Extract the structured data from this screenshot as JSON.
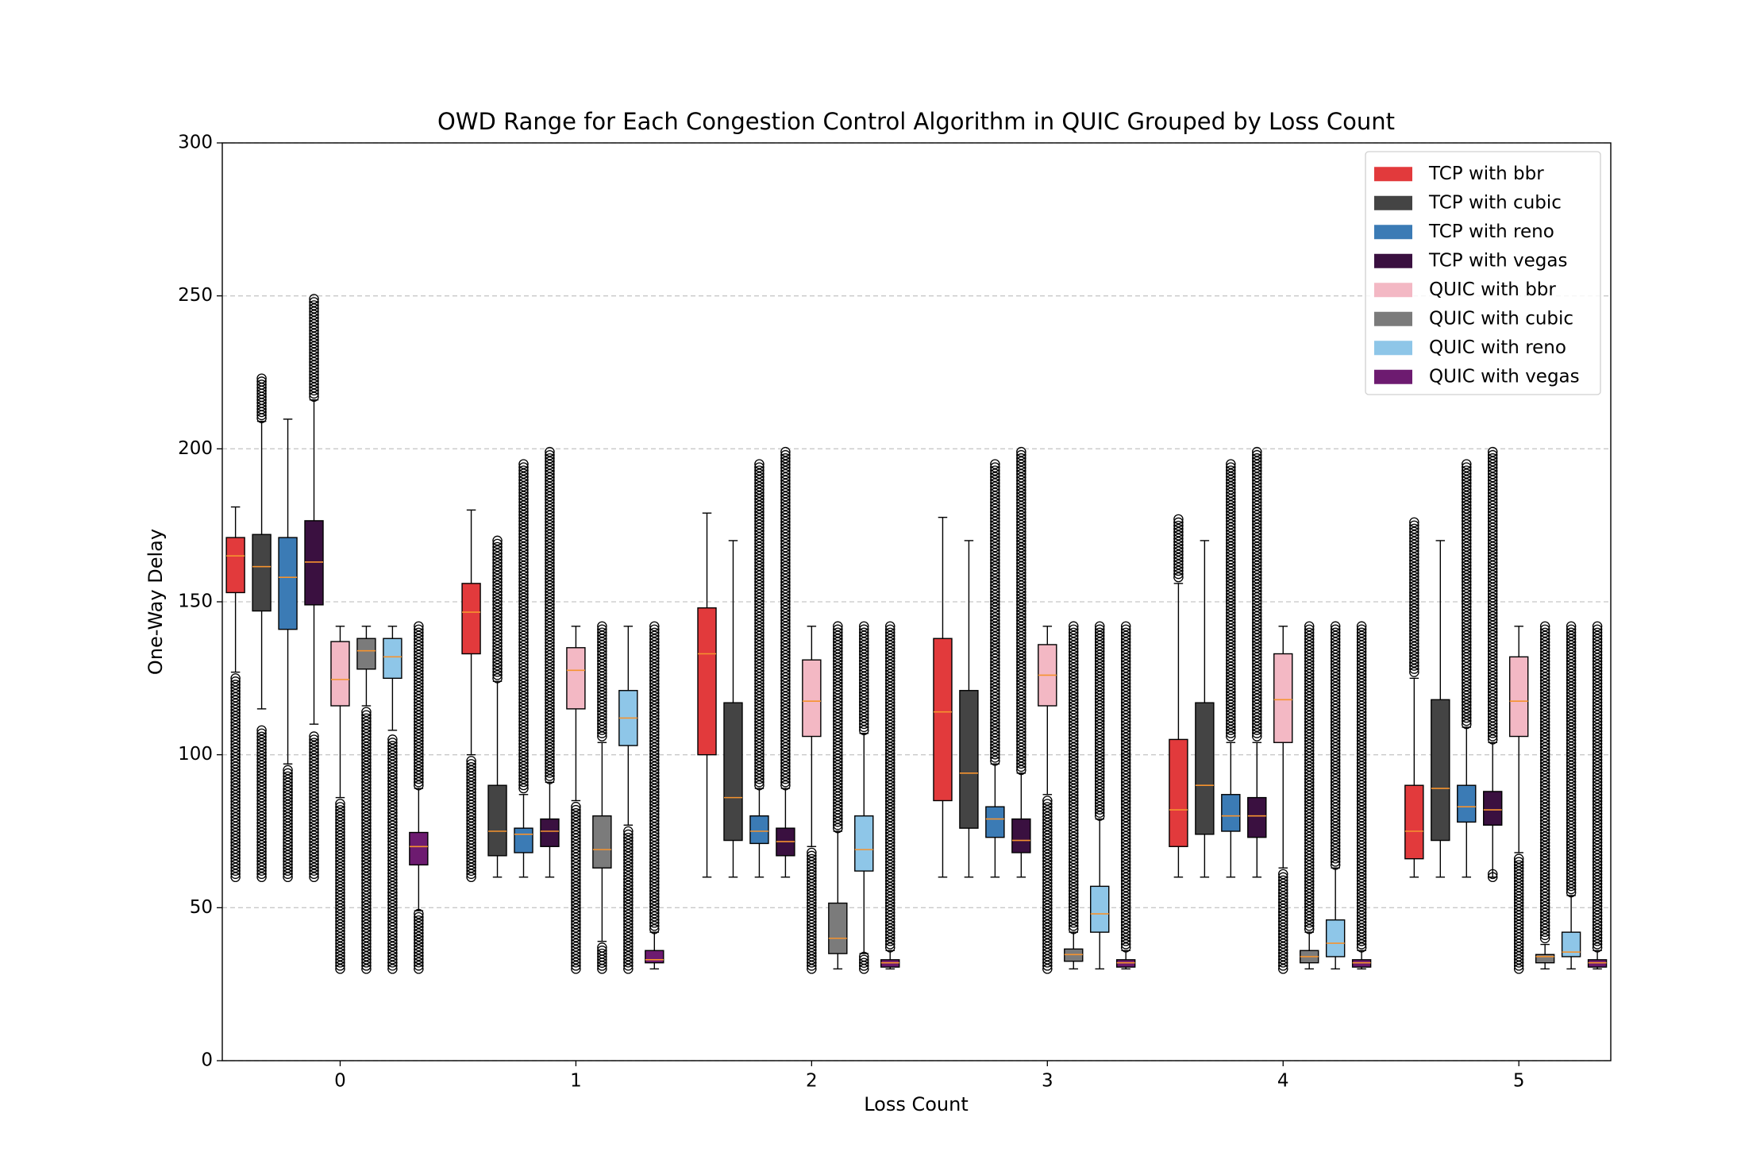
{
  "chart_data": {
    "type": "box",
    "title": "OWD Range for Each Congestion Control Algorithm in QUIC Grouped by Loss Count",
    "x_label": "Loss Count",
    "y_label": "One-Way Delay",
    "categories": [
      "0",
      "1",
      "2",
      "3",
      "4",
      "5"
    ],
    "ylim": [
      0,
      300
    ],
    "yticks": [
      0,
      50,
      100,
      150,
      200,
      250,
      300
    ],
    "grid": true,
    "legend": "upper right",
    "median_color": "#f5932f",
    "series": [
      {
        "name": "TCP with bbr",
        "color": "#e23a3c",
        "whislo": [
          127,
          100,
          60,
          60,
          60,
          60
        ],
        "q1": [
          153,
          133,
          100,
          85,
          70,
          66
        ],
        "med": [
          165,
          146.6,
          133,
          114,
          82,
          75
        ],
        "q3": [
          171,
          156,
          148,
          138,
          105,
          90
        ],
        "whishi": [
          181,
          180,
          179,
          177.6,
          156,
          125
        ],
        "fliers": [
          [
            [
              60,
              125
            ]
          ],
          [
            [
              60,
              98
            ]
          ],
          [],
          [],
          [
            [
              158,
              177
            ]
          ],
          [
            [
              127,
              176
            ]
          ]
        ]
      },
      {
        "name": "TCP with cubic",
        "color": "#444444",
        "whislo": [
          115,
          60,
          60,
          60,
          60,
          60
        ],
        "q1": [
          147,
          67,
          72,
          76,
          74,
          72
        ],
        "med": [
          161.5,
          75,
          86,
          94,
          90,
          89
        ],
        "q3": [
          172,
          90,
          117,
          121,
          117,
          118
        ],
        "whishi": [
          209,
          124,
          170,
          170,
          170,
          170
        ],
        "fliers": [
          [
            [
              60,
              108
            ],
            [
              210,
              223
            ]
          ],
          [
            [
              125,
              170
            ]
          ],
          [],
          [],
          [],
          []
        ]
      },
      {
        "name": "TCP with reno",
        "color": "#3b7bb5",
        "whislo": [
          97,
          60,
          60,
          60,
          60,
          60
        ],
        "q1": [
          141,
          68,
          71,
          73,
          75,
          78
        ],
        "med": [
          158,
          74,
          75,
          79,
          80,
          83
        ],
        "q3": [
          171,
          76,
          80,
          83,
          87,
          90
        ],
        "whishi": [
          209.7,
          87,
          89,
          97,
          104,
          109
        ],
        "fliers": [
          [
            [
              60,
              95
            ]
          ],
          [
            [
              89,
              195
            ]
          ],
          [
            [
              90,
              195
            ]
          ],
          [
            [
              98,
              195
            ]
          ],
          [
            [
              106,
              195
            ]
          ],
          [
            [
              110,
              195
            ]
          ]
        ]
      },
      {
        "name": "TCP with vegas",
        "color": "#3a1040",
        "whislo": [
          110,
          60,
          60,
          60,
          60,
          60
        ],
        "q1": [
          149,
          70,
          67,
          68,
          73,
          77
        ],
        "med": [
          163,
          75,
          71.6,
          72,
          80,
          82
        ],
        "q3": [
          176.5,
          79,
          76,
          79,
          86,
          88
        ],
        "whishi": [
          216,
          91,
          89,
          94,
          104,
          104
        ],
        "fliers": [
          [
            [
              60,
              106
            ],
            [
              217,
              249
            ]
          ],
          [
            [
              92,
              199
            ]
          ],
          [
            [
              90,
              199
            ]
          ],
          [
            [
              95,
              199
            ]
          ],
          [
            [
              106,
              199
            ]
          ],
          [
            [
              60,
              61
            ],
            [
              105,
              199
            ]
          ]
        ]
      },
      {
        "name": "QUIC with bbr",
        "color": "#f3b8c4",
        "whislo": [
          86,
          85,
          70,
          87,
          63,
          68
        ],
        "q1": [
          116,
          115,
          106,
          116,
          104,
          106
        ],
        "med": [
          124.6,
          127.6,
          117.5,
          126,
          118,
          117.5
        ],
        "q3": [
          137,
          135,
          131,
          136,
          133,
          132
        ],
        "whishi": [
          142,
          142,
          142,
          142,
          142,
          142
        ],
        "fliers": [
          [
            [
              30,
              84
            ]
          ],
          [
            [
              30,
              83
            ]
          ],
          [
            [
              30,
              68
            ]
          ],
          [
            [
              30,
              85
            ]
          ],
          [
            [
              30,
              61
            ]
          ],
          [
            [
              30,
              66
            ]
          ]
        ]
      },
      {
        "name": "QUIC with cubic",
        "color": "#7b7b7b",
        "whislo": [
          116,
          39,
          30,
          30,
          30,
          30
        ],
        "q1": [
          128,
          63,
          35,
          32.5,
          32,
          32
        ],
        "med": [
          134,
          69,
          40,
          34.7,
          34,
          34
        ],
        "q3": [
          138,
          80,
          51.5,
          36.5,
          36,
          34.7
        ],
        "whishi": [
          142,
          104,
          75,
          42,
          42,
          38
        ],
        "fliers": [
          [
            [
              30,
              114
            ]
          ],
          [
            [
              30,
              37
            ],
            [
              106,
              142
            ]
          ],
          [
            [
              76,
              142
            ]
          ],
          [
            [
              43,
              142
            ]
          ],
          [
            [
              43,
              142
            ]
          ],
          [
            [
              40,
              142
            ]
          ]
        ]
      },
      {
        "name": "QUIC with reno",
        "color": "#8ec6e8",
        "whislo": [
          108,
          77,
          35,
          30,
          30,
          30
        ],
        "q1": [
          125,
          103,
          62,
          42,
          34,
          34
        ],
        "med": [
          132,
          112,
          69,
          48,
          38.4,
          35.5
        ],
        "q3": [
          138,
          121,
          80,
          57,
          46,
          42
        ],
        "whishi": [
          142,
          142,
          107,
          79,
          63,
          54
        ],
        "fliers": [
          [
            [
              30,
              105
            ]
          ],
          [
            [
              30,
              75
            ]
          ],
          [
            [
              30,
              34
            ],
            [
              108,
              142
            ]
          ],
          [
            [
              80,
              142
            ]
          ],
          [
            [
              64,
              142
            ]
          ],
          [
            [
              55,
              142
            ]
          ]
        ]
      },
      {
        "name": "QUIC with vegas",
        "color": "#6d1b70",
        "whislo": [
          49,
          30,
          30,
          30,
          30,
          30
        ],
        "q1": [
          64,
          32,
          30.6,
          30.6,
          30.6,
          30.6
        ],
        "med": [
          70,
          33,
          32,
          32,
          32,
          32
        ],
        "q3": [
          74.6,
          36,
          33,
          33,
          33,
          33
        ],
        "whishi": [
          89,
          42,
          36,
          36,
          36,
          36
        ],
        "fliers": [
          [
            [
              30,
              48
            ],
            [
              90,
              142
            ]
          ],
          [
            [
              43,
              142
            ]
          ],
          [
            [
              37,
              142
            ]
          ],
          [
            [
              37,
              142
            ]
          ],
          [
            [
              37,
              142
            ]
          ],
          [
            [
              37,
              142
            ]
          ]
        ]
      }
    ]
  }
}
